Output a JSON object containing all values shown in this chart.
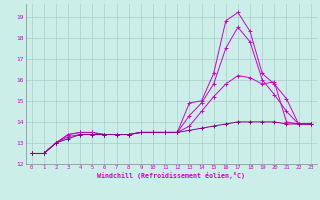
{
  "xlabel": "Windchill (Refroidissement éolien,°C)",
  "background_color": "#cceee8",
  "grid_color": "#aacccc",
  "line_color": "#cc00cc",
  "line_color2": "#880088",
  "x_ticks": [
    0,
    1,
    2,
    3,
    4,
    5,
    6,
    7,
    8,
    9,
    10,
    11,
    12,
    13,
    14,
    15,
    16,
    17,
    18,
    19,
    20,
    21,
    22,
    23
  ],
  "y_ticks": [
    12,
    13,
    14,
    15,
    16,
    17,
    18,
    19
  ],
  "xlim": [
    -0.5,
    23.5
  ],
  "ylim": [
    12,
    19.6
  ],
  "lines": [
    {
      "x": [
        0,
        1,
        2,
        3,
        4,
        5,
        6,
        7,
        8,
        9,
        10,
        11,
        12,
        13,
        14,
        15,
        16,
        17,
        18,
        19,
        20,
        21,
        22,
        23
      ],
      "y": [
        12.5,
        12.5,
        13.0,
        13.4,
        13.5,
        13.5,
        13.4,
        13.4,
        13.4,
        13.5,
        13.5,
        13.5,
        13.5,
        14.9,
        15.0,
        16.3,
        18.8,
        19.2,
        18.3,
        16.3,
        15.8,
        15.1,
        13.9,
        13.9
      ],
      "color": "#cc00cc"
    },
    {
      "x": [
        0,
        1,
        2,
        3,
        4,
        5,
        6,
        7,
        8,
        9,
        10,
        11,
        12,
        13,
        14,
        15,
        16,
        17,
        18,
        19,
        20,
        21,
        22,
        23
      ],
      "y": [
        12.5,
        12.5,
        13.0,
        13.4,
        13.5,
        13.5,
        13.4,
        13.4,
        13.4,
        13.5,
        13.5,
        13.5,
        13.5,
        14.3,
        14.9,
        15.8,
        17.5,
        18.5,
        17.8,
        16.0,
        15.3,
        14.5,
        13.9,
        13.9
      ],
      "color": "#cc00cc"
    },
    {
      "x": [
        0,
        1,
        2,
        3,
        4,
        5,
        6,
        7,
        8,
        9,
        10,
        11,
        12,
        13,
        14,
        15,
        16,
        17,
        18,
        19,
        20,
        21,
        22,
        23
      ],
      "y": [
        12.5,
        12.5,
        13.0,
        13.3,
        13.4,
        13.4,
        13.4,
        13.4,
        13.4,
        13.5,
        13.5,
        13.5,
        13.5,
        13.8,
        14.5,
        15.2,
        15.8,
        16.2,
        16.1,
        15.8,
        15.9,
        14.0,
        13.9,
        13.9
      ],
      "color": "#cc00cc"
    },
    {
      "x": [
        0,
        1,
        2,
        3,
        4,
        5,
        6,
        7,
        8,
        9,
        10,
        11,
        12,
        13,
        14,
        15,
        16,
        17,
        18,
        19,
        20,
        21,
        22,
        23
      ],
      "y": [
        12.5,
        12.5,
        13.0,
        13.2,
        13.4,
        13.4,
        13.4,
        13.4,
        13.4,
        13.5,
        13.5,
        13.5,
        13.5,
        13.6,
        13.7,
        13.8,
        13.9,
        14.0,
        14.0,
        14.0,
        14.0,
        13.9,
        13.9,
        13.9
      ],
      "color": "#880088"
    }
  ]
}
